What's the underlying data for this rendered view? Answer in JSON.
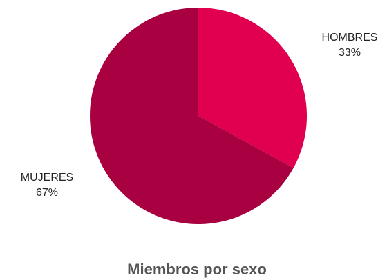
{
  "chart_data": {
    "type": "pie",
    "title": "Miembros por sexo",
    "slices": [
      {
        "label": "HOMBRES",
        "value": 33,
        "value_label": "33%",
        "color": "#e0004f"
      },
      {
        "label": "MUJERES",
        "value": 67,
        "value_label": "67%",
        "color": "#a80040"
      }
    ],
    "start_angle_deg": 0,
    "direction": "clockwise",
    "legend": "none"
  }
}
